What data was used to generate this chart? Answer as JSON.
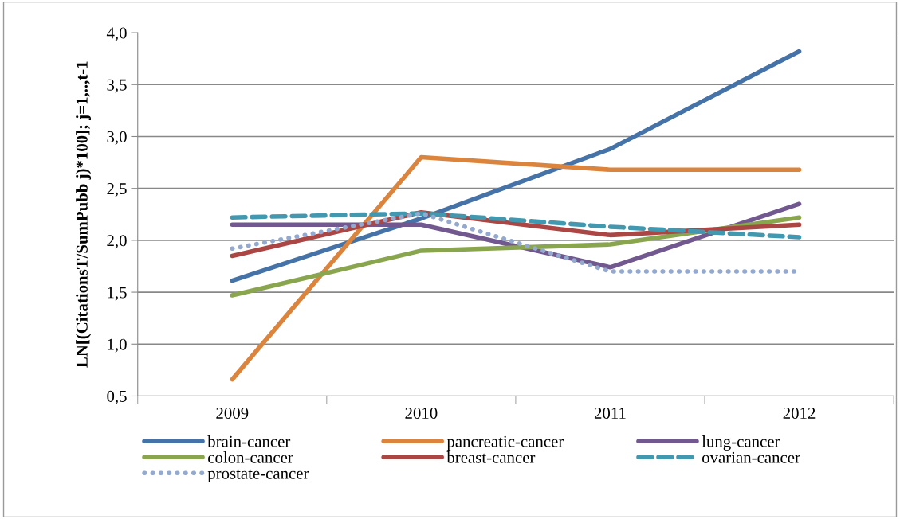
{
  "chart_data": {
    "type": "line",
    "ylabel": "LN[(CitationsT/SumPubb j)*100]; j=1,..,t-1",
    "categories": [
      "2009",
      "2010",
      "2011",
      "2012"
    ],
    "ylim": [
      0.5,
      4.0
    ],
    "yticks": [
      {
        "value": 0.5,
        "label": "0,5"
      },
      {
        "value": 1.0,
        "label": "1,0"
      },
      {
        "value": 1.5,
        "label": "1,5"
      },
      {
        "value": 2.0,
        "label": "2,0"
      },
      {
        "value": 2.5,
        "label": "2,5"
      },
      {
        "value": 3.0,
        "label": "3,0"
      },
      {
        "value": 3.5,
        "label": "3,5"
      },
      {
        "value": 4.0,
        "label": "4,0"
      }
    ],
    "grid": "y",
    "legend": "bottom",
    "marker": "none",
    "series": [
      {
        "name": "brain-cancer",
        "color": "#4572a7",
        "values": [
          1.61,
          2.21,
          2.88,
          3.82
        ]
      },
      {
        "name": "pancreatic-cancer",
        "color": "#db843d",
        "values": [
          0.66,
          2.8,
          2.68,
          2.68
        ]
      },
      {
        "name": "lung-cancer",
        "color": "#71588f",
        "values": [
          2.15,
          2.15,
          1.74,
          2.35
        ]
      },
      {
        "name": "colon-cancer",
        "color": "#89a54e",
        "values": [
          1.47,
          1.9,
          1.96,
          2.22
        ]
      },
      {
        "name": "breast-cancer",
        "color": "#aa4643",
        "values": [
          1.85,
          2.27,
          2.05,
          2.15
        ]
      },
      {
        "name": "ovarian-cancer",
        "color": "#4198af",
        "values": [
          2.22,
          2.26,
          2.13,
          2.03
        ],
        "line_style": "dashed"
      },
      {
        "name": "prostate-cancer",
        "color": "#93a9cf",
        "values": [
          1.92,
          2.26,
          1.7,
          1.7
        ],
        "line_style": "dotted"
      }
    ]
  }
}
